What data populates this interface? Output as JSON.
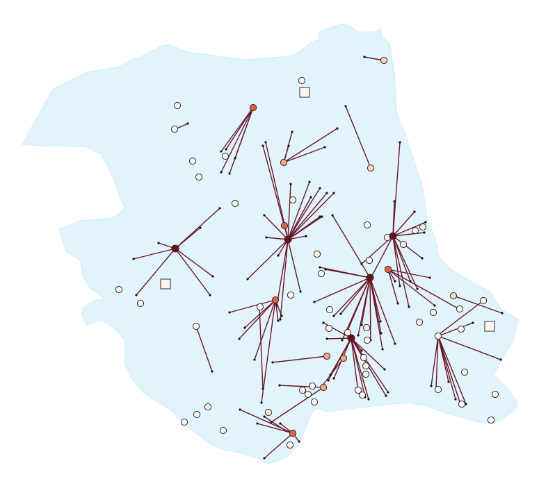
{
  "map": {
    "colors": {
      "region_fill": "#e1f3fb",
      "region_stroke": "#d2ecf7",
      "flow_line": "#6b1528",
      "line_endpoint": "#111111",
      "point_stroke": "#2b2b2b",
      "level_0": "#fff5ef",
      "level_1": "#fcd5bf",
      "level_2": "#f9a482",
      "level_3": "#e6603f",
      "level_4": "#6b0d17"
    },
    "hubs": [
      {
        "id": "hub-north",
        "level": 3
      },
      {
        "id": "hub-north-center",
        "level": 2
      },
      {
        "id": "hub-west",
        "level": 4
      },
      {
        "id": "hub-center",
        "level": 4
      },
      {
        "id": "hub-center-small",
        "level": 3
      },
      {
        "id": "hub-center-left",
        "level": 3
      },
      {
        "id": "hub-east",
        "level": 4
      },
      {
        "id": "hub-east-lower",
        "level": 3
      },
      {
        "id": "hub-south-center",
        "level": 4
      },
      {
        "id": "hub-south",
        "level": 4
      },
      {
        "id": "hub-far-east",
        "level": 0
      },
      {
        "id": "hub-south-west",
        "level": 3
      },
      {
        "id": "hub-south-mid",
        "level": 2
      },
      {
        "id": "hub-south-mid2",
        "level": 2
      },
      {
        "id": "hub-top-right",
        "level": 1
      },
      {
        "id": "hub-east-far",
        "level": 1
      },
      {
        "id": "hub-north-east",
        "level": 1
      },
      {
        "id": "hub-south-lower",
        "level": 2
      }
    ],
    "square_markers": [
      {
        "id": "square-north",
        "level": 0
      },
      {
        "id": "square-west",
        "level": 0
      },
      {
        "id": "square-east",
        "level": 0
      }
    ]
  }
}
